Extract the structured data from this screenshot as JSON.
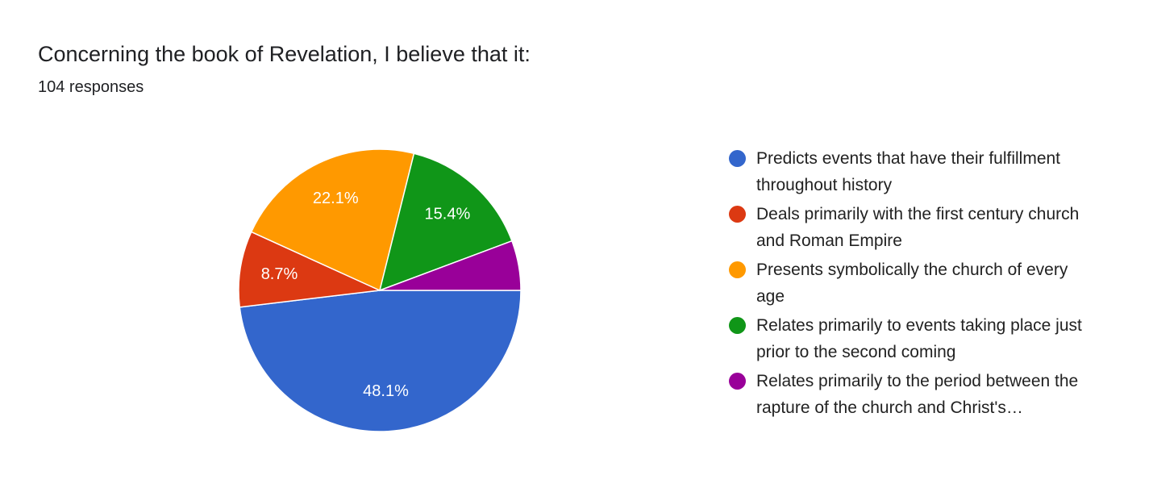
{
  "chart_data": {
    "type": "pie",
    "title": "Concerning the book of Revelation, I believe that it:",
    "subtitle": "104 responses",
    "categories": [
      "Predicts events that have their fulfillment throughout history",
      "Deals primarily with the first century church and Roman Empire",
      "Presents symbolically the church of every age",
      "Relates primarily to events taking place just prior to the second coming",
      "Relates primarily to the period between the rapture of the church and Christ's…"
    ],
    "values": [
      48.1,
      8.7,
      22.1,
      15.4,
      5.7
    ],
    "value_labels": [
      "48.1%",
      "8.7%",
      "22.1%",
      "15.4%",
      null
    ],
    "colors": [
      "#3366cc",
      "#dc3912",
      "#ff9900",
      "#109618",
      "#990099"
    ],
    "legend": "right"
  }
}
